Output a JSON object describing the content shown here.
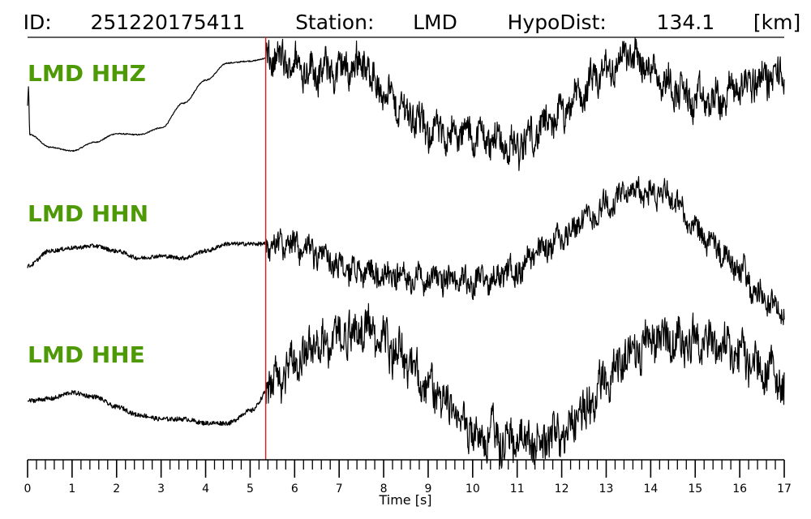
{
  "header": {
    "id_label": "ID:",
    "id_value": "251220175411",
    "station_label": "Station:",
    "station_value": "LMD",
    "hypodist_label": "HypoDist:",
    "hypodist_value": "134.1",
    "hypodist_unit": "[km]"
  },
  "colors": {
    "trace": "#000000",
    "label": "#4e9a06",
    "pick_line": "#e31a1c",
    "background": "#ffffff"
  },
  "chart_data": {
    "type": "line",
    "title": "ID: 251220175411   Station: LMD   HypoDist:   134.1 [km]",
    "xlabel": "Time [s]",
    "ylabel": "",
    "xlim": [
      0,
      17
    ],
    "x_ticks": [
      0,
      1,
      2,
      3,
      4,
      5,
      6,
      7,
      8,
      9,
      10,
      11,
      12,
      13,
      14,
      15,
      16,
      17
    ],
    "minor_tick_step": 0.2,
    "grid": false,
    "legend": "none",
    "pick_time": 5.35,
    "series": [
      {
        "name": "LMD HHZ",
        "base_noise": 0.006,
        "noise_after_pick": 0.16,
        "points": [
          [
            0.0,
            0.35
          ],
          [
            0.02,
            0.55
          ],
          [
            0.05,
            0.05
          ],
          [
            0.5,
            -0.08
          ],
          [
            1.0,
            -0.12
          ],
          [
            1.5,
            -0.03
          ],
          [
            2.0,
            0.06
          ],
          [
            2.5,
            0.05
          ],
          [
            3.0,
            0.12
          ],
          [
            3.5,
            0.38
          ],
          [
            4.0,
            0.62
          ],
          [
            4.5,
            0.8
          ],
          [
            5.0,
            0.82
          ],
          [
            5.4,
            0.85
          ],
          [
            6.0,
            0.78
          ],
          [
            6.5,
            0.72
          ],
          [
            7.0,
            0.72
          ],
          [
            7.5,
            0.8
          ],
          [
            8.0,
            0.5
          ],
          [
            8.5,
            0.3
          ],
          [
            9.0,
            0.1
          ],
          [
            9.5,
            0.05
          ],
          [
            10.0,
            0.05
          ],
          [
            10.5,
            0.0
          ],
          [
            11.0,
            -0.1
          ],
          [
            11.5,
            0.1
          ],
          [
            12.0,
            0.25
          ],
          [
            12.5,
            0.5
          ],
          [
            13.0,
            0.72
          ],
          [
            13.5,
            0.88
          ],
          [
            14.0,
            0.75
          ],
          [
            14.5,
            0.55
          ],
          [
            15.0,
            0.4
          ],
          [
            15.5,
            0.4
          ],
          [
            16.0,
            0.55
          ],
          [
            16.5,
            0.65
          ],
          [
            17.0,
            0.65
          ]
        ]
      },
      {
        "name": "LMD HHN",
        "base_noise": 0.02,
        "noise_after_pick": 0.11,
        "points": [
          [
            0.0,
            0.1
          ],
          [
            0.5,
            0.25
          ],
          [
            1.0,
            0.28
          ],
          [
            1.5,
            0.3
          ],
          [
            2.0,
            0.25
          ],
          [
            2.5,
            0.18
          ],
          [
            3.0,
            0.2
          ],
          [
            3.5,
            0.18
          ],
          [
            4.0,
            0.25
          ],
          [
            4.5,
            0.32
          ],
          [
            5.0,
            0.32
          ],
          [
            5.5,
            0.32
          ],
          [
            6.0,
            0.3
          ],
          [
            6.5,
            0.22
          ],
          [
            7.0,
            0.1
          ],
          [
            7.5,
            0.05
          ],
          [
            8.0,
            0.0
          ],
          [
            8.5,
            0.0
          ],
          [
            9.0,
            -0.02
          ],
          [
            9.5,
            -0.05
          ],
          [
            10.0,
            -0.05
          ],
          [
            10.5,
            0.0
          ],
          [
            11.0,
            0.05
          ],
          [
            11.5,
            0.25
          ],
          [
            12.0,
            0.4
          ],
          [
            12.5,
            0.55
          ],
          [
            13.0,
            0.7
          ],
          [
            13.5,
            0.82
          ],
          [
            14.0,
            0.85
          ],
          [
            14.5,
            0.75
          ],
          [
            15.0,
            0.45
          ],
          [
            15.5,
            0.25
          ],
          [
            16.0,
            0.05
          ],
          [
            16.5,
            -0.2
          ],
          [
            17.0,
            -0.38
          ]
        ]
      },
      {
        "name": "LMD HHE",
        "base_noise": 0.022,
        "noise_after_pick": 0.18,
        "points": [
          [
            0.0,
            0.1
          ],
          [
            0.5,
            0.12
          ],
          [
            1.0,
            0.18
          ],
          [
            1.5,
            0.14
          ],
          [
            2.0,
            0.04
          ],
          [
            2.5,
            -0.04
          ],
          [
            3.0,
            -0.08
          ],
          [
            3.5,
            -0.08
          ],
          [
            4.0,
            -0.12
          ],
          [
            4.5,
            -0.12
          ],
          [
            5.0,
            0.0
          ],
          [
            5.5,
            0.25
          ],
          [
            6.0,
            0.5
          ],
          [
            6.5,
            0.62
          ],
          [
            7.0,
            0.75
          ],
          [
            7.5,
            0.82
          ],
          [
            8.0,
            0.7
          ],
          [
            8.5,
            0.5
          ],
          [
            9.0,
            0.25
          ],
          [
            9.5,
            0.0
          ],
          [
            10.0,
            -0.2
          ],
          [
            10.5,
            -0.25
          ],
          [
            11.0,
            -0.28
          ],
          [
            11.5,
            -0.3
          ],
          [
            12.0,
            -0.25
          ],
          [
            12.5,
            0.0
          ],
          [
            13.0,
            0.3
          ],
          [
            13.5,
            0.55
          ],
          [
            14.0,
            0.7
          ],
          [
            14.5,
            0.7
          ],
          [
            15.0,
            0.7
          ],
          [
            15.5,
            0.65
          ],
          [
            16.0,
            0.55
          ],
          [
            16.5,
            0.4
          ],
          [
            17.0,
            0.25
          ]
        ]
      }
    ]
  }
}
